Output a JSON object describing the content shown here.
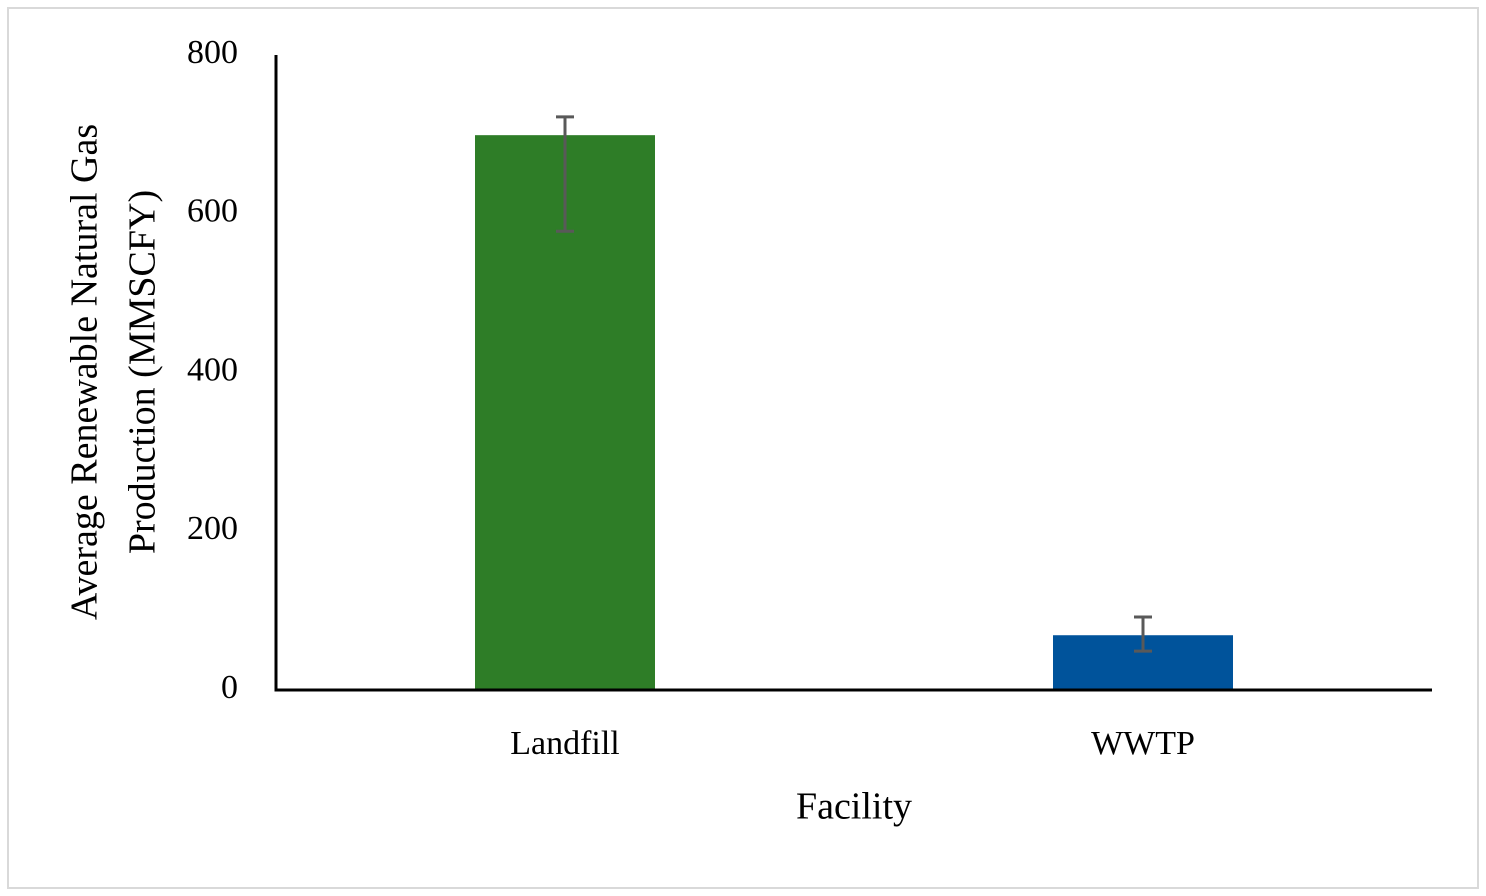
{
  "chart_data": {
    "type": "bar",
    "x_label": "Facility",
    "y_label": [
      "Average Renewable Natural Gas",
      "Production (MMSCFY)"
    ],
    "categories": [
      "Landfill",
      "WWTP"
    ],
    "values": [
      699,
      69
    ],
    "errors_plus": [
      23,
      23
    ],
    "errors_minus": [
      121,
      20
    ],
    "colors": [
      "#2e7d27",
      "#00539b"
    ],
    "error_color": "#595959",
    "ylim": [
      0,
      800
    ],
    "yticks": [
      0,
      200,
      400,
      600,
      800
    ],
    "grid": false
  }
}
